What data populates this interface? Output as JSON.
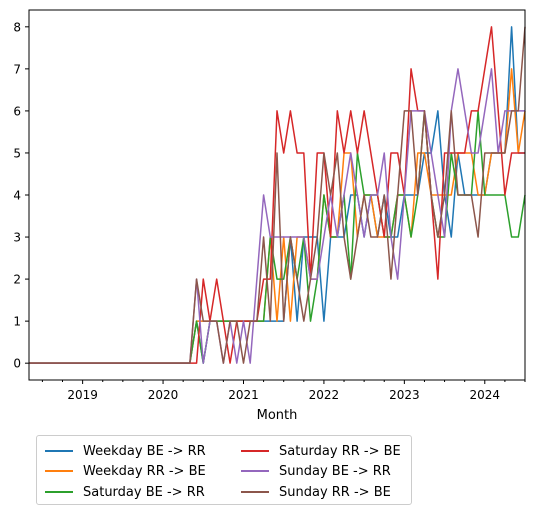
{
  "chart_data": {
    "type": "line",
    "title": "",
    "xlabel": "Month",
    "ylabel": "",
    "x_start": "2018-05",
    "x_end": "2024-07",
    "xlim": [
      "2018-05",
      "2024-07"
    ],
    "ylim": [
      -0.4,
      8.4
    ],
    "x_ticks": [
      "2019",
      "2020",
      "2021",
      "2022",
      "2023",
      "2024"
    ],
    "y_ticks": [
      "0",
      "1",
      "2",
      "3",
      "4",
      "5",
      "6",
      "7",
      "8"
    ],
    "grid": false,
    "legend_position": "below",
    "colors": [
      "#1f77b4",
      "#ff7f0e",
      "#2ca02c",
      "#d62728",
      "#9467bd",
      "#8c564b"
    ],
    "x": [
      "2018-05",
      "2018-06",
      "2018-07",
      "2018-08",
      "2018-09",
      "2018-10",
      "2018-11",
      "2018-12",
      "2019-01",
      "2019-02",
      "2019-03",
      "2019-04",
      "2019-05",
      "2019-06",
      "2019-07",
      "2019-08",
      "2019-09",
      "2019-10",
      "2019-11",
      "2019-12",
      "2020-01",
      "2020-02",
      "2020-03",
      "2020-04",
      "2020-05",
      "2020-06",
      "2020-07",
      "2020-08",
      "2020-09",
      "2020-10",
      "2020-11",
      "2020-12",
      "2021-01",
      "2021-02",
      "2021-03",
      "2021-04",
      "2021-05",
      "2021-06",
      "2021-07",
      "2021-08",
      "2021-09",
      "2021-10",
      "2021-11",
      "2021-12",
      "2022-01",
      "2022-02",
      "2022-03",
      "2022-04",
      "2022-05",
      "2022-06",
      "2022-07",
      "2022-08",
      "2022-09",
      "2022-10",
      "2022-11",
      "2022-12",
      "2023-01",
      "2023-02",
      "2023-03",
      "2023-04",
      "2023-05",
      "2023-06",
      "2023-07",
      "2023-08",
      "2023-09",
      "2023-10",
      "2023-11",
      "2023-12",
      "2024-01",
      "2024-02",
      "2024-03",
      "2024-04",
      "2024-05",
      "2024-06",
      "2024-07"
    ],
    "series": [
      {
        "name": "Weekday BE -> RR",
        "values": [
          0,
          0,
          0,
          0,
          0,
          0,
          0,
          0,
          0,
          0,
          0,
          0,
          0,
          0,
          0,
          0,
          0,
          0,
          0,
          0,
          0,
          0,
          0,
          0,
          0,
          1,
          0,
          1,
          1,
          1,
          1,
          1,
          1,
          1,
          1,
          1,
          1,
          1,
          1,
          3,
          1,
          3,
          3,
          3,
          1,
          3,
          3,
          3,
          4,
          4,
          3,
          4,
          3,
          4,
          3,
          3,
          4,
          4,
          4,
          5,
          5,
          6,
          4,
          3,
          5,
          4,
          4,
          4,
          4,
          5,
          5,
          5,
          8,
          5,
          5
        ]
      },
      {
        "name": "Weekday RR -> BE",
        "values": [
          0,
          0,
          0,
          0,
          0,
          0,
          0,
          0,
          0,
          0,
          0,
          0,
          0,
          0,
          0,
          0,
          0,
          0,
          0,
          0,
          0,
          0,
          0,
          0,
          0,
          1,
          1,
          1,
          1,
          1,
          1,
          1,
          1,
          1,
          1,
          1,
          3,
          1,
          3,
          1,
          3,
          3,
          2,
          2,
          4,
          3,
          3,
          5,
          5,
          3,
          4,
          4,
          3,
          3,
          3,
          4,
          4,
          3,
          5,
          5,
          4,
          4,
          4,
          4,
          5,
          5,
          5,
          4,
          4,
          5,
          5,
          5,
          7,
          5,
          6
        ]
      },
      {
        "name": "Saturday BE -> RR",
        "values": [
          0,
          0,
          0,
          0,
          0,
          0,
          0,
          0,
          0,
          0,
          0,
          0,
          0,
          0,
          0,
          0,
          0,
          0,
          0,
          0,
          0,
          0,
          0,
          0,
          0,
          1,
          0,
          1,
          1,
          1,
          1,
          1,
          1,
          1,
          1,
          1,
          3,
          2,
          2,
          3,
          2,
          3,
          1,
          2,
          4,
          3,
          3,
          4,
          2,
          5,
          4,
          4,
          4,
          3,
          3,
          4,
          4,
          3,
          4,
          6,
          4,
          3,
          3,
          5,
          4,
          4,
          4,
          6,
          4,
          4,
          4,
          4,
          3,
          3,
          4
        ]
      },
      {
        "name": "Saturday RR -> BE",
        "values": [
          0,
          0,
          0,
          0,
          0,
          0,
          0,
          0,
          0,
          0,
          0,
          0,
          0,
          0,
          0,
          0,
          0,
          0,
          0,
          0,
          0,
          0,
          0,
          0,
          0,
          0,
          2,
          1,
          2,
          1,
          0,
          1,
          1,
          1,
          1,
          2,
          2,
          6,
          5,
          6,
          5,
          5,
          2,
          5,
          5,
          3,
          6,
          5,
          6,
          5,
          6,
          5,
          4,
          3,
          5,
          5,
          4,
          7,
          6,
          6,
          4,
          2,
          5,
          5,
          5,
          5,
          6,
          6,
          7,
          8,
          6,
          4,
          5,
          5,
          5
        ]
      },
      {
        "name": "Sunday BE -> RR",
        "values": [
          0,
          0,
          0,
          0,
          0,
          0,
          0,
          0,
          0,
          0,
          0,
          0,
          0,
          0,
          0,
          0,
          0,
          0,
          0,
          0,
          0,
          0,
          0,
          0,
          0,
          2,
          0,
          1,
          1,
          0,
          1,
          0,
          1,
          0,
          2,
          4,
          3,
          3,
          3,
          3,
          3,
          3,
          2,
          2,
          3,
          4,
          3,
          4,
          5,
          4,
          3,
          4,
          4,
          5,
          3,
          2,
          4,
          6,
          6,
          6,
          5,
          4,
          3,
          6,
          7,
          6,
          5,
          5,
          6,
          7,
          5,
          6,
          6,
          6,
          6
        ]
      },
      {
        "name": "Sunday RR -> BE",
        "values": [
          0,
          0,
          0,
          0,
          0,
          0,
          0,
          0,
          0,
          0,
          0,
          0,
          0,
          0,
          0,
          0,
          0,
          0,
          0,
          0,
          0,
          0,
          0,
          0,
          0,
          2,
          1,
          1,
          1,
          0,
          1,
          1,
          0,
          1,
          1,
          3,
          1,
          5,
          1,
          3,
          2,
          1,
          2,
          3,
          5,
          4,
          5,
          3,
          2,
          3,
          4,
          3,
          3,
          4,
          2,
          4,
          6,
          6,
          4,
          6,
          4,
          3,
          4,
          6,
          4,
          4,
          4,
          3,
          5,
          5,
          5,
          5,
          6,
          6,
          8
        ]
      }
    ]
  }
}
